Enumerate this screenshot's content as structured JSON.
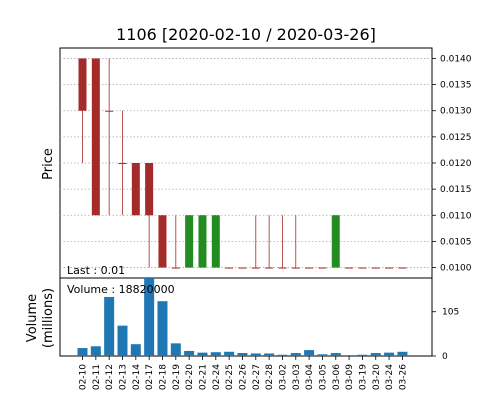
{
  "chart_data": {
    "type": "candlestick",
    "title": "1106   [2020-02-10 / 2020-03-26]",
    "price_panel": {
      "ylabel": "Price",
      "ylim": [
        0.0098,
        0.0142
      ],
      "yticks": [
        "0.0100",
        "0.0105",
        "0.0110",
        "0.0115",
        "0.0120",
        "0.0125",
        "0.0130",
        "0.0135",
        "0.0140"
      ],
      "grid": true,
      "last_label": "Last : 0.01",
      "up_color": "#228b22",
      "down_color": "#a52a2a"
    },
    "volume_panel": {
      "ylabel_line1": "Volume",
      "ylabel_line2": "(millions)",
      "ylim": [
        0,
        185
      ],
      "yticks": [
        "0",
        "105"
      ],
      "volume_label": "Volume : 18820000",
      "bar_color": "#1f77b4"
    },
    "x": [
      "02-10",
      "02-11",
      "02-12",
      "02-13",
      "02-14",
      "02-17",
      "02-18",
      "02-19",
      "02-20",
      "02-21",
      "02-24",
      "02-25",
      "02-26",
      "02-27",
      "02-28",
      "03-02",
      "03-03",
      "03-04",
      "03-05",
      "03-06",
      "03-09",
      "03-19",
      "03-20",
      "03-24",
      "03-26"
    ],
    "open": [
      0.014,
      0.014,
      0.013,
      0.012,
      0.012,
      0.012,
      0.011,
      0.01,
      0.01,
      0.01,
      0.01,
      0.01,
      0.01,
      0.01,
      0.01,
      0.01,
      0.01,
      0.01,
      0.01,
      0.01,
      0.01,
      0.01,
      0.01,
      0.01,
      0.01
    ],
    "high": [
      0.014,
      0.014,
      0.014,
      0.013,
      0.012,
      0.012,
      0.011,
      0.011,
      0.011,
      0.011,
      0.011,
      0.01,
      0.01,
      0.011,
      0.011,
      0.011,
      0.011,
      0.01,
      0.01,
      0.011,
      0.01,
      0.01,
      0.01,
      0.01,
      0.01
    ],
    "low": [
      0.012,
      0.011,
      0.011,
      0.011,
      0.011,
      0.01,
      0.01,
      0.01,
      0.01,
      0.01,
      0.01,
      0.01,
      0.01,
      0.01,
      0.01,
      0.01,
      0.01,
      0.01,
      0.01,
      0.01,
      0.01,
      0.01,
      0.01,
      0.01,
      0.01
    ],
    "close": [
      0.013,
      0.011,
      0.013,
      0.012,
      0.011,
      0.011,
      0.01,
      0.01,
      0.011,
      0.011,
      0.011,
      0.01,
      0.01,
      0.01,
      0.01,
      0.01,
      0.01,
      0.01,
      0.01,
      0.011,
      0.01,
      0.01,
      0.01,
      0.01,
      0.01
    ],
    "volume": [
      18.8,
      23,
      140,
      72,
      28,
      185,
      130,
      30,
      12,
      8,
      9,
      10,
      7,
      6,
      6,
      3,
      7,
      14,
      4,
      7,
      2,
      3,
      7,
      8,
      10
    ]
  }
}
